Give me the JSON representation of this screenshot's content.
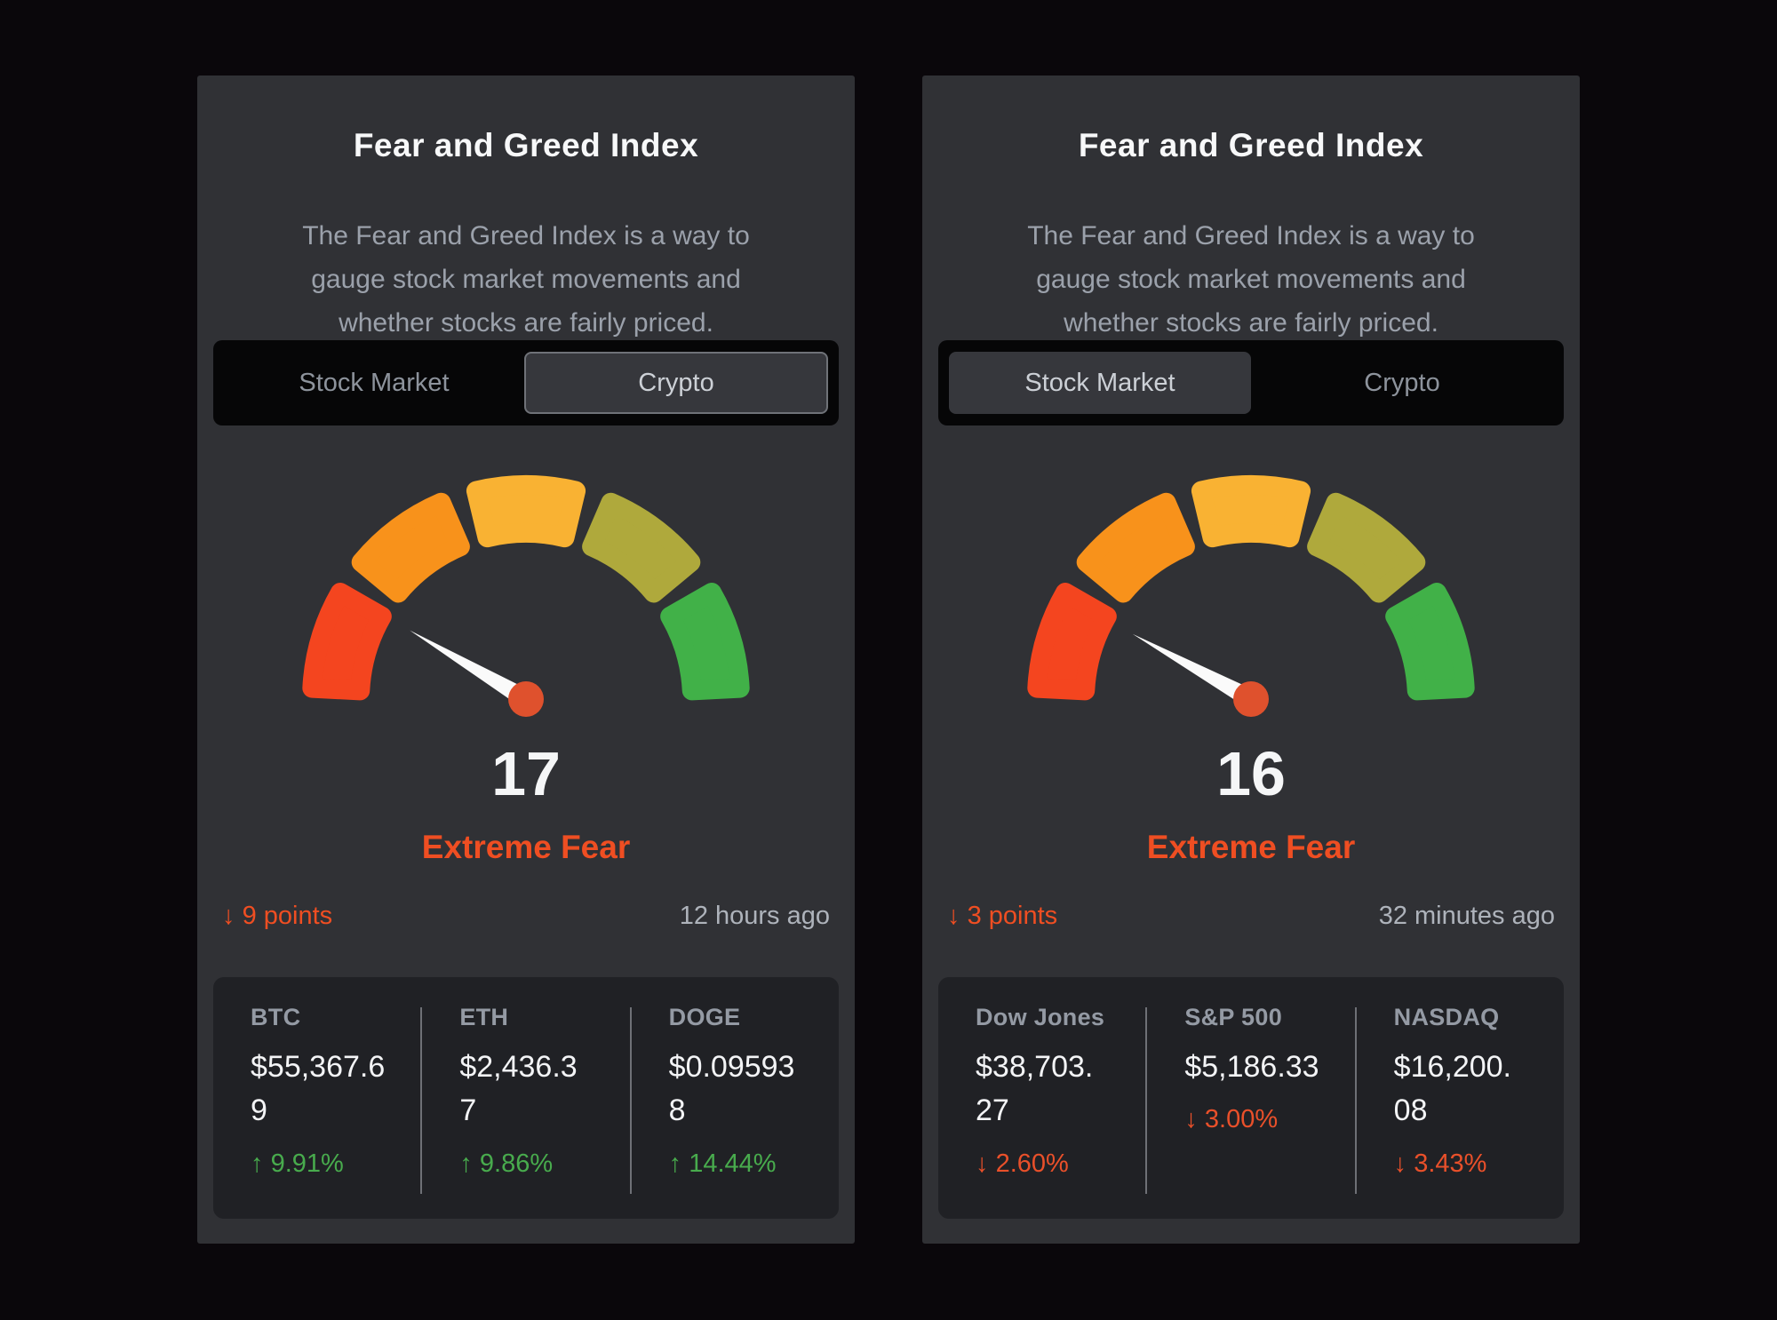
{
  "colors": {
    "page_background": "#0a070b",
    "card_background": "#303135",
    "panel_background": "#202125",
    "accent_red": "#ef4e22",
    "positive_green": "#48ab4d",
    "negative_red": "#e9502a"
  },
  "cards": [
    {
      "title": "Fear and Greed Index",
      "description": "The Fear and Greed Index is a way to gauge stock market movements and whether stocks are fairly priced.",
      "toggle": {
        "options": [
          "Stock Market",
          "Crypto"
        ],
        "selected": "Crypto",
        "selected_has_border": true
      },
      "gauge": {
        "value": 17,
        "min": 0,
        "max": 100,
        "segment_colors": [
          "#f4451f",
          "#f8921b",
          "#f9b233",
          "#afa93c",
          "#41b148"
        ],
        "needle_color": "#fafafa",
        "pivot_color": "#df512d"
      },
      "score": "17",
      "sentiment": "Extreme Fear",
      "change": {
        "arrow": "↓",
        "text": "9 points",
        "direction": "down"
      },
      "updated": "12 hours ago",
      "stats": [
        {
          "label": "BTC",
          "value": "$55,367.69",
          "value_lines": [
            "$55,367.6",
            "9"
          ],
          "change": {
            "arrow": "↑",
            "text": "9.91%",
            "direction": "up"
          }
        },
        {
          "label": "ETH",
          "value": "$2,436.37",
          "value_lines": [
            "$2,436.3",
            "7"
          ],
          "change": {
            "arrow": "↑",
            "text": "9.86%",
            "direction": "up"
          }
        },
        {
          "label": "DOGE",
          "value": "$0.095938",
          "value_lines": [
            "$0.09593",
            "8"
          ],
          "change": {
            "arrow": "↑",
            "text": "14.44%",
            "direction": "up"
          }
        }
      ]
    },
    {
      "title": "Fear and Greed Index",
      "description": "The Fear and Greed Index is a way to gauge stock market movements and whether stocks are fairly priced.",
      "toggle": {
        "options": [
          "Stock Market",
          "Crypto"
        ],
        "selected": "Stock Market",
        "selected_has_border": false
      },
      "gauge": {
        "value": 16,
        "min": 0,
        "max": 100,
        "segment_colors": [
          "#f4451f",
          "#f8921b",
          "#f9b233",
          "#afa93c",
          "#41b148"
        ],
        "needle_color": "#fafafa",
        "pivot_color": "#df512d"
      },
      "score": "16",
      "sentiment": "Extreme Fear",
      "change": {
        "arrow": "↓",
        "text": "3 points",
        "direction": "down"
      },
      "updated": "32 minutes ago",
      "stats": [
        {
          "label": "Dow Jones",
          "value": "$38,703.27",
          "value_lines": [
            "$38,703.",
            "27"
          ],
          "change": {
            "arrow": "↓",
            "text": "2.60%",
            "direction": "down"
          }
        },
        {
          "label": "S&P 500",
          "value": "$5,186.33",
          "value_lines": [
            "$5,186.33"
          ],
          "change": {
            "arrow": "↓",
            "text": "3.00%",
            "direction": "down"
          }
        },
        {
          "label": "NASDAQ",
          "value": "$16,200.08",
          "value_lines": [
            "$16,200.",
            "08"
          ],
          "change": {
            "arrow": "↓",
            "text": "3.43%",
            "direction": "down"
          }
        }
      ]
    }
  ]
}
